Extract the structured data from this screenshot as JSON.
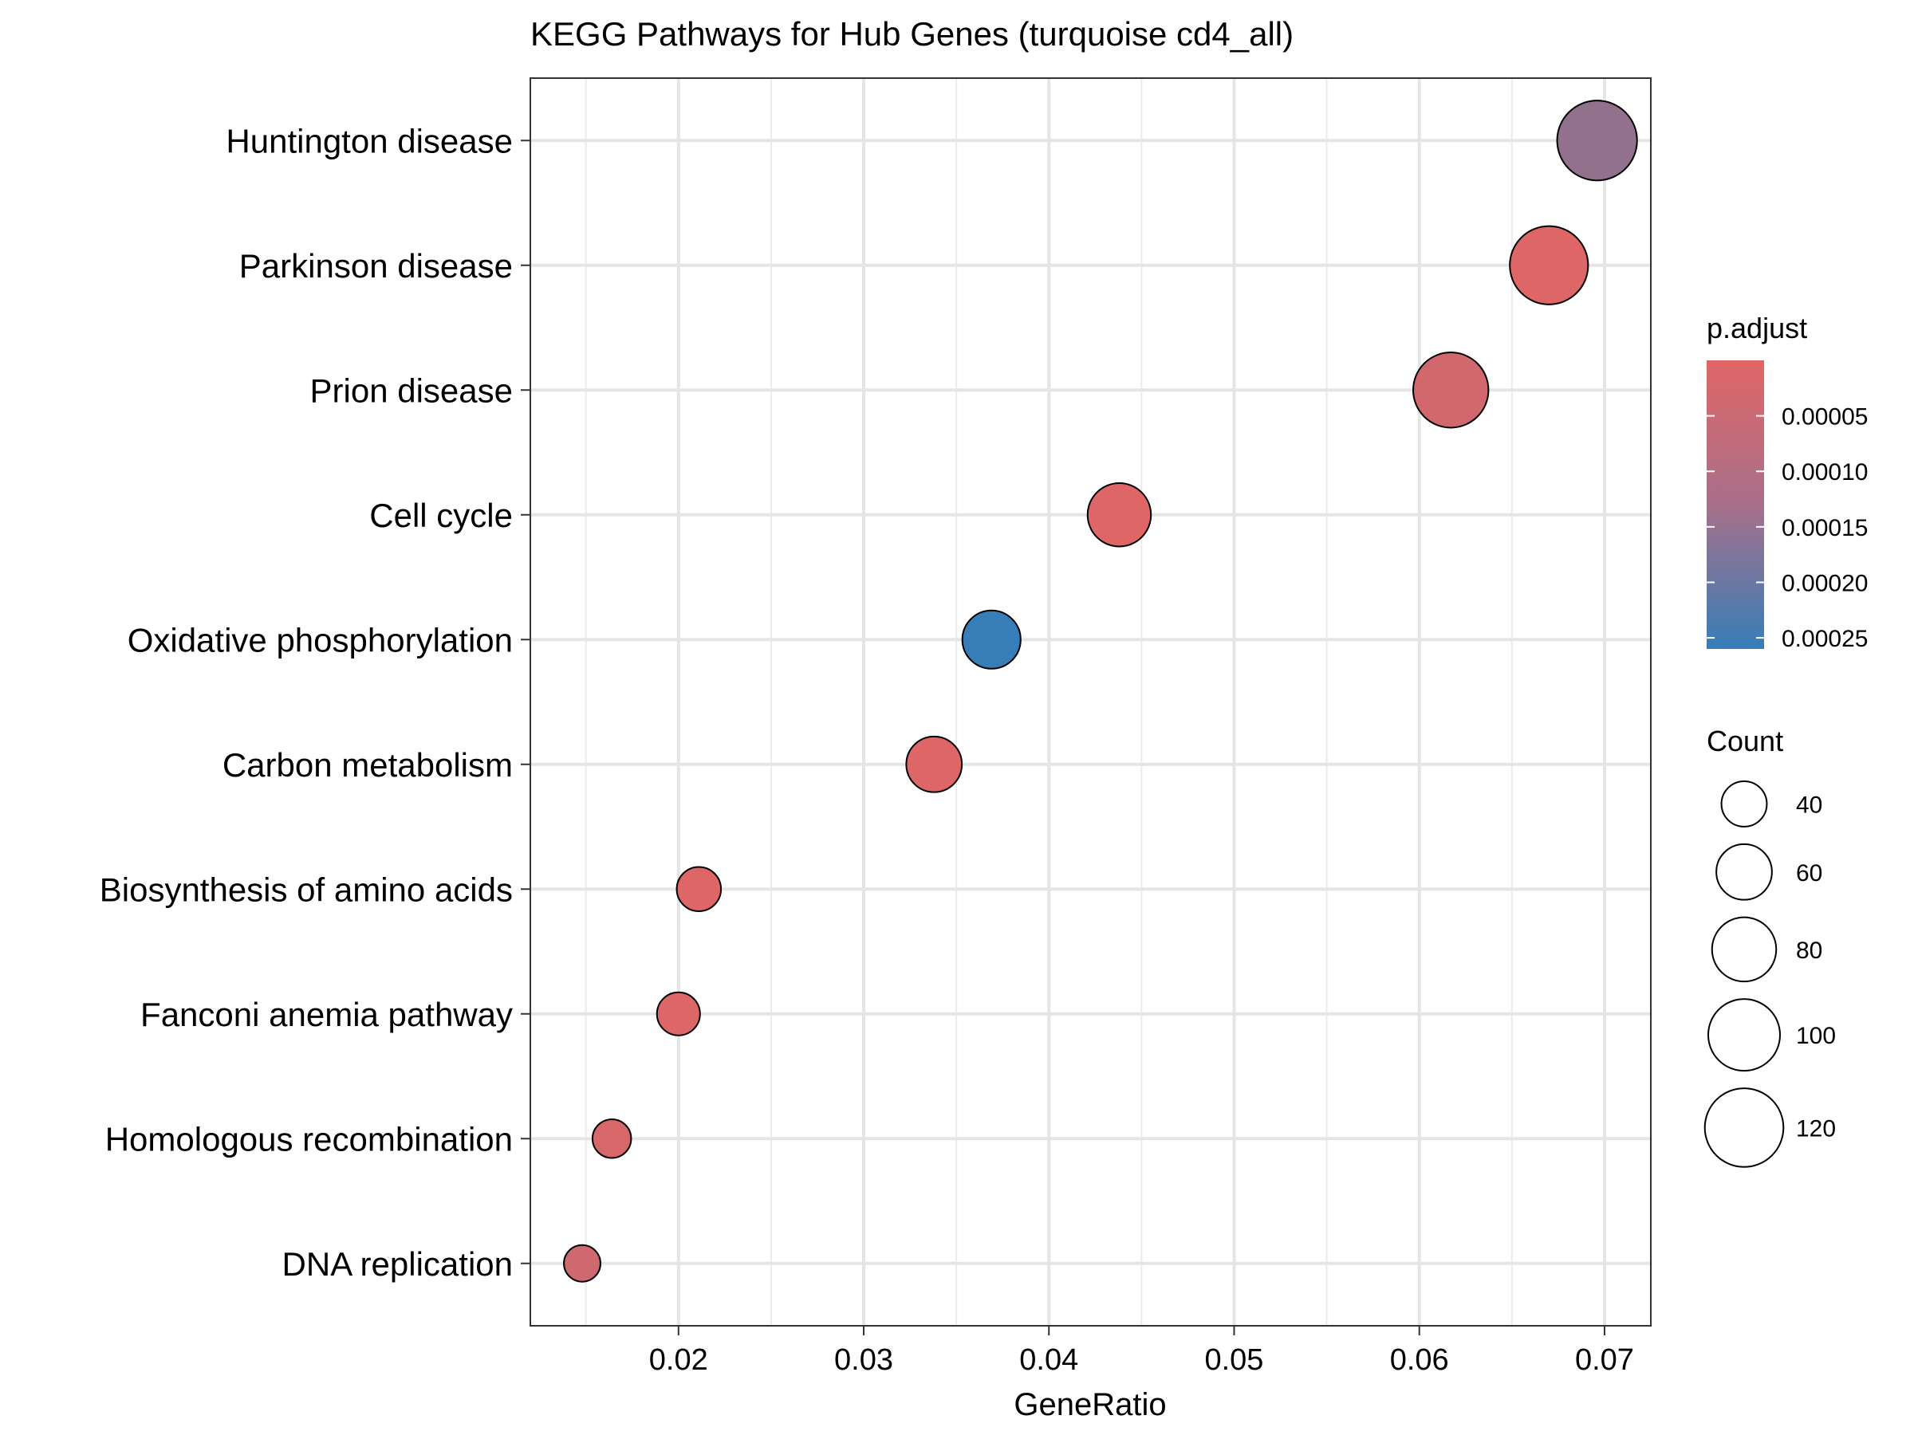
{
  "chart_data": {
    "type": "scatter",
    "title": "KEGG Pathways for Hub Genes (turquoise cd4_all)",
    "xlabel": "GeneRatio",
    "ylabel": "",
    "xlim": [
      0.012,
      0.0725
    ],
    "xticks": [
      0.02,
      0.03,
      0.04,
      0.05,
      0.06,
      0.07
    ],
    "xtick_labels": [
      "0.02",
      "0.03",
      "0.04",
      "0.05",
      "0.06",
      "0.07"
    ],
    "grid": true,
    "legend_position": "right",
    "points": [
      {
        "pathway": "Huntington disease",
        "gene_ratio": 0.0696,
        "count": 124,
        "p_adjust": 0.00012
      },
      {
        "pathway": "Parkinson disease",
        "gene_ratio": 0.067,
        "count": 119,
        "p_adjust": 2e-06
      },
      {
        "pathway": "Prion disease",
        "gene_ratio": 0.0617,
        "count": 110,
        "p_adjust": 2.5e-05
      },
      {
        "pathway": "Cell cycle",
        "gene_ratio": 0.0438,
        "count": 78,
        "p_adjust": 3e-06
      },
      {
        "pathway": "Oxidative phosphorylation",
        "gene_ratio": 0.0369,
        "count": 66,
        "p_adjust": 0.00026
      },
      {
        "pathway": "Carbon metabolism",
        "gene_ratio": 0.0338,
        "count": 60,
        "p_adjust": 3e-06
      },
      {
        "pathway": "Biosynthesis of amino acids",
        "gene_ratio": 0.0211,
        "count": 38,
        "p_adjust": 3e-06
      },
      {
        "pathway": "Fanconi anemia pathway",
        "gene_ratio": 0.02,
        "count": 36,
        "p_adjust": 4e-06
      },
      {
        "pathway": "Homologous recombination",
        "gene_ratio": 0.0164,
        "count": 29,
        "p_adjust": 1.2e-05
      },
      {
        "pathway": "DNA replication",
        "gene_ratio": 0.0148,
        "count": 26,
        "p_adjust": 3e-05
      }
    ],
    "color_legend": {
      "title": "p.adjust",
      "breaks": [
        5e-05,
        0.0001,
        0.00015,
        0.0002,
        0.00025
      ],
      "labels": [
        "0.00005",
        "0.00010",
        "0.00015",
        "0.00020",
        "0.00025"
      ],
      "range": [
        0.0,
        0.00026
      ],
      "low_color": "#e06666",
      "high_color": "#377eb8"
    },
    "size_legend": {
      "title": "Count",
      "values": [
        40,
        60,
        80,
        100,
        120
      ],
      "labels": [
        "40",
        "60",
        "80",
        "100",
        "120"
      ]
    }
  }
}
